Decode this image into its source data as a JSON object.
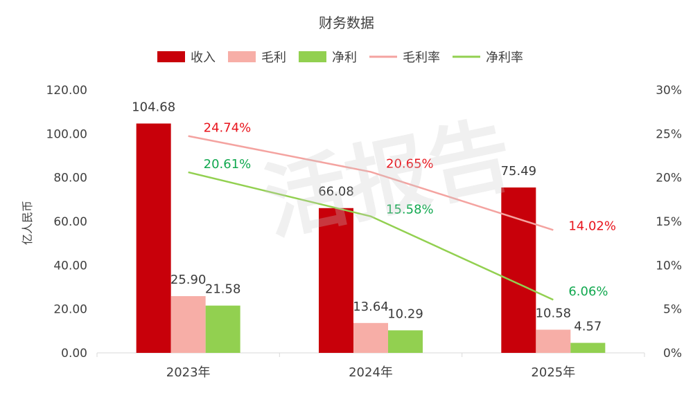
{
  "chart_data": {
    "type": "bar",
    "title": "财务数据",
    "categories": [
      "2023年",
      "2024年",
      "2025年"
    ],
    "ylabel": "亿人民币",
    "ylim": [
      0,
      120
    ],
    "y2lim": [
      0,
      30
    ],
    "y_ticks": [
      "0.00",
      "20.00",
      "40.00",
      "60.00",
      "80.00",
      "100.00",
      "120.00"
    ],
    "y2_ticks": [
      "0%",
      "5%",
      "10%",
      "15%",
      "20%",
      "25%",
      "30%"
    ],
    "grid": false,
    "legend_position": "top-center",
    "series": [
      {
        "name": "收入",
        "kind": "bar",
        "color": "#c8000a",
        "values": [
          104.68,
          66.08,
          75.49
        ],
        "labels": [
          "104.68",
          "66.08",
          "75.49"
        ],
        "label_color": "#3a3a3a"
      },
      {
        "name": "毛利",
        "kind": "bar",
        "color": "#f7aea7",
        "values": [
          25.9,
          13.64,
          10.58
        ],
        "labels": [
          "25.90",
          "13.64",
          "10.58"
        ],
        "label_color": "#3a3a3a"
      },
      {
        "name": "净利",
        "kind": "bar",
        "color": "#92d050",
        "values": [
          21.58,
          10.29,
          4.57
        ],
        "labels": [
          "21.58",
          "10.29",
          "4.57"
        ],
        "label_color": "#3a3a3a"
      },
      {
        "name": "毛利率",
        "kind": "line",
        "axis": "right",
        "color": "#f4a3a0",
        "values": [
          24.74,
          20.65,
          14.02
        ],
        "labels": [
          "24.74%",
          "20.65%",
          "14.02%"
        ],
        "label_color": "#e8141c"
      },
      {
        "name": "净利率",
        "kind": "line",
        "axis": "right",
        "color": "#92d050",
        "values": [
          20.61,
          15.58,
          6.06
        ],
        "labels": [
          "20.61%",
          "15.58%",
          "6.06%"
        ],
        "label_color": "#11a84f"
      }
    ],
    "watermark": "活报告"
  }
}
